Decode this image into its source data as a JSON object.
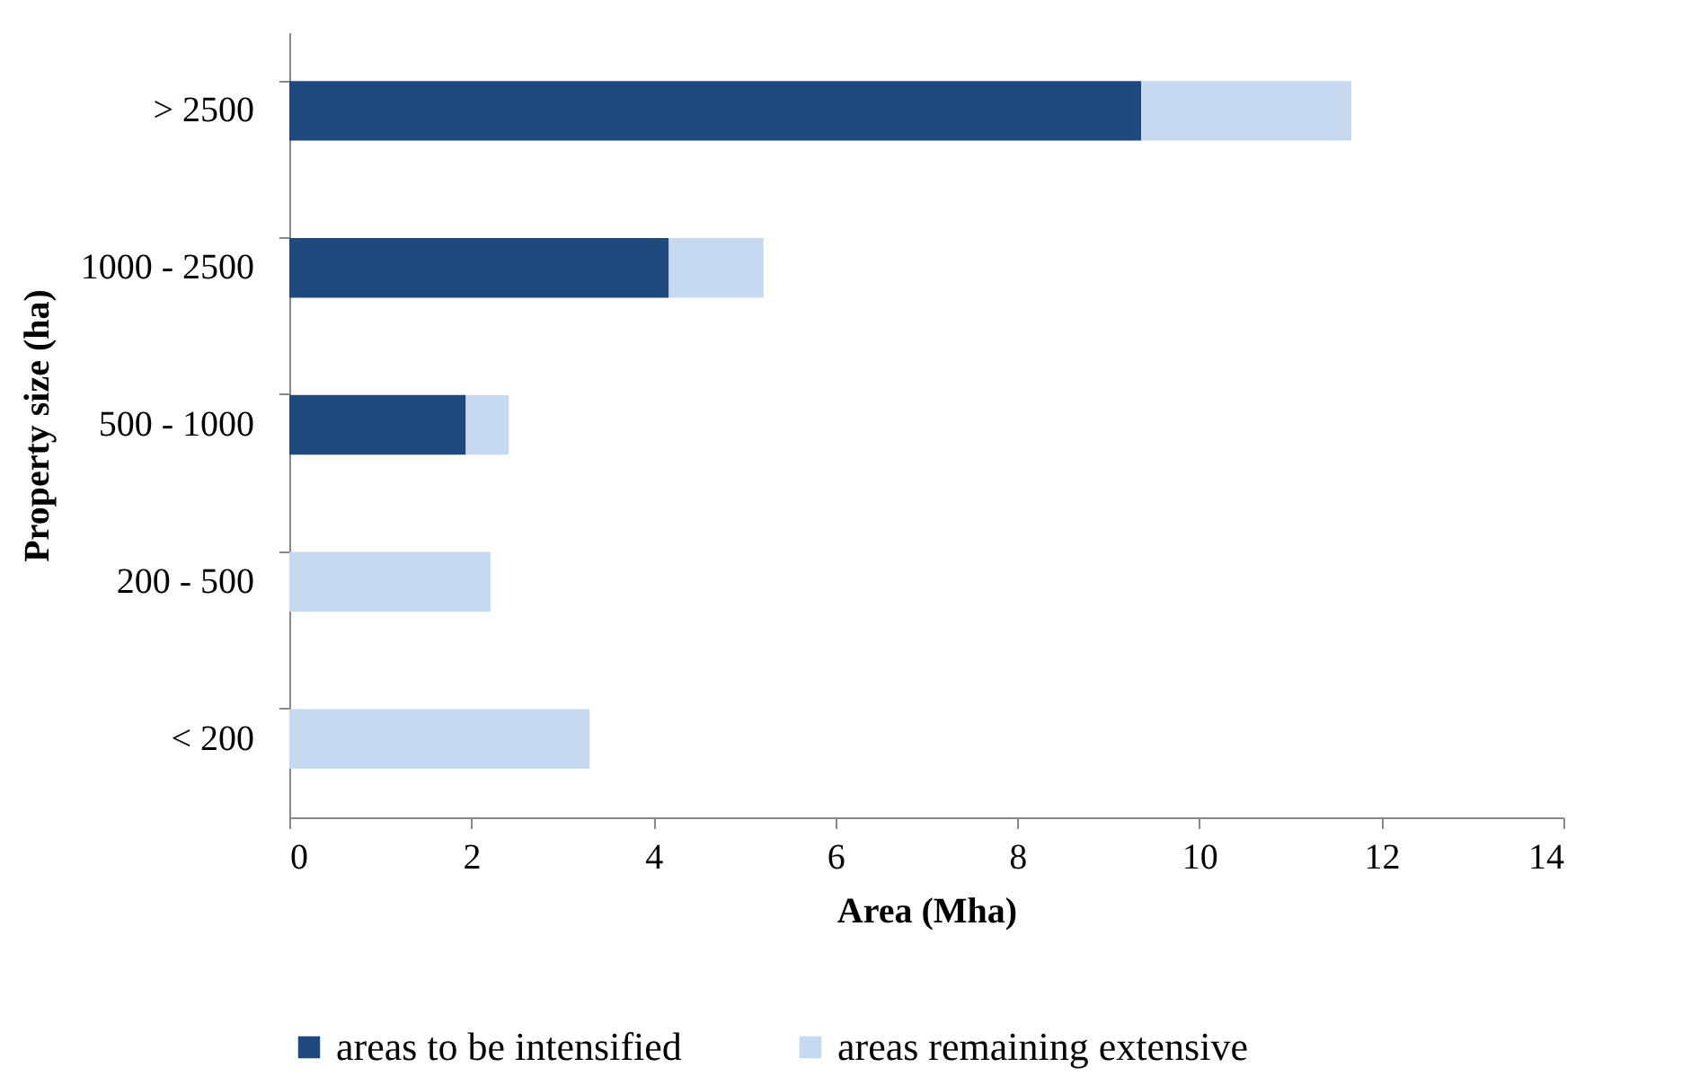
{
  "chart_data": {
    "type": "bar",
    "orientation": "horizontal",
    "stacked": true,
    "xlabel": "Area (Mha)",
    "ylabel": "Property size (ha)",
    "categories": [
      "> 2500",
      "1000 - 2500",
      "500 - 1000",
      "200 - 500",
      "< 200"
    ],
    "series": [
      {
        "name": "areas to be intensified",
        "color": "#1f497d",
        "values": [
          9.36,
          4.17,
          1.94,
          null,
          null
        ]
      },
      {
        "name": "areas remaining extensive",
        "color": "#c6d9f1",
        "values": [
          2.31,
          1.04,
          0.47,
          2.21,
          3.3
        ]
      }
    ],
    "xlim": [
      0,
      14
    ],
    "xticks": [
      0,
      2,
      4,
      6,
      8,
      10,
      12,
      14
    ],
    "grid": false,
    "legend": "bottom"
  }
}
